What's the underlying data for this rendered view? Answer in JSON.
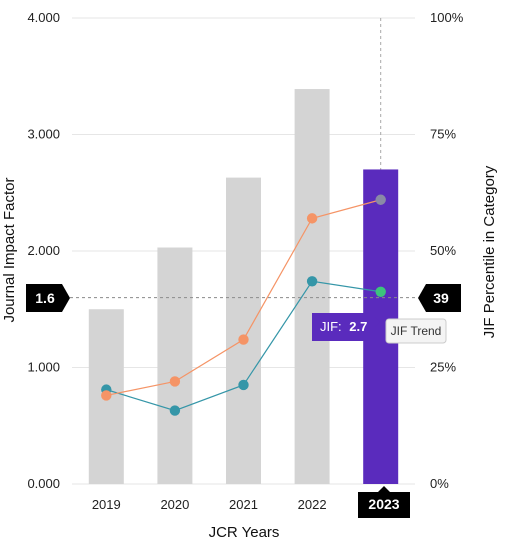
{
  "chart_data": {
    "type": "bar",
    "title": "",
    "xlabel": "JCR Years",
    "ylabel": "Journal Impact Factor",
    "y2label": "JIF Percentile in Category",
    "categories": [
      "2019",
      "2020",
      "2021",
      "2022",
      "2023"
    ],
    "ylim": [
      0,
      4
    ],
    "y2lim": [
      0,
      100
    ],
    "yticks": [
      "0.000",
      "1.000",
      "2.000",
      "3.000",
      "4.000"
    ],
    "y2ticks": [
      "0%",
      "25%",
      "50%",
      "75%",
      "100%"
    ],
    "grid": true,
    "bars": {
      "values": [
        1.5,
        2.03,
        2.63,
        3.39,
        2.7
      ],
      "color": "#d4d4d4",
      "highlight_color": "#5a2bbd",
      "highlight_index": 4
    },
    "lines": [
      {
        "values": [
          0.81,
          0.63,
          0.85,
          1.74,
          1.65
        ],
        "color": "#3596a8",
        "axis": "left"
      },
      {
        "values": [
          19,
          22,
          31,
          57,
          61
        ],
        "color": "#f59466",
        "axis": "right"
      }
    ],
    "reference": {
      "y": 1.6,
      "left_label": "1.6",
      "right_label": "39"
    },
    "selected_year_label": "2023",
    "tooltip": {
      "jif_label": "JIF:",
      "jif_value": "2.7",
      "trend_label": "JIF Trend"
    }
  },
  "colors": {
    "flag_bg": "#000000",
    "purple": "#5a2bbd",
    "teal": "#3596a8",
    "orange": "#f59466",
    "green": "#3cc47c",
    "grey_marker": "#8a8aa6"
  }
}
